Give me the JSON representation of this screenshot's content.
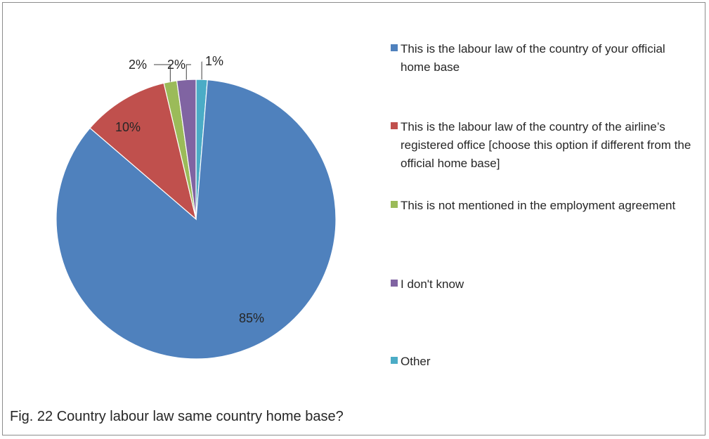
{
  "caption": "Fig. 22 Country labour law same country home base?",
  "chart_data": {
    "type": "pie",
    "title": "",
    "legend_position": "right",
    "slices": [
      {
        "label": "This is the labour law of the country of your official home base",
        "value": 85,
        "display": "85%",
        "color": "#4f81bd"
      },
      {
        "label": "This is the labour law of the country of the airline’s registered office [choose this option if different from the official home base]",
        "value": 10,
        "display": "10%",
        "color": "#c0504d"
      },
      {
        "label": "This is not mentioned in the employment agreement",
        "value": 1.5,
        "display": "2%",
        "color": "#9bbb59"
      },
      {
        "label": "I don't know",
        "value": 2.2,
        "display": "2%",
        "color": "#8064a2"
      },
      {
        "label": "Other",
        "value": 1.3,
        "display": "1%",
        "color": "#4bacc6"
      }
    ]
  }
}
